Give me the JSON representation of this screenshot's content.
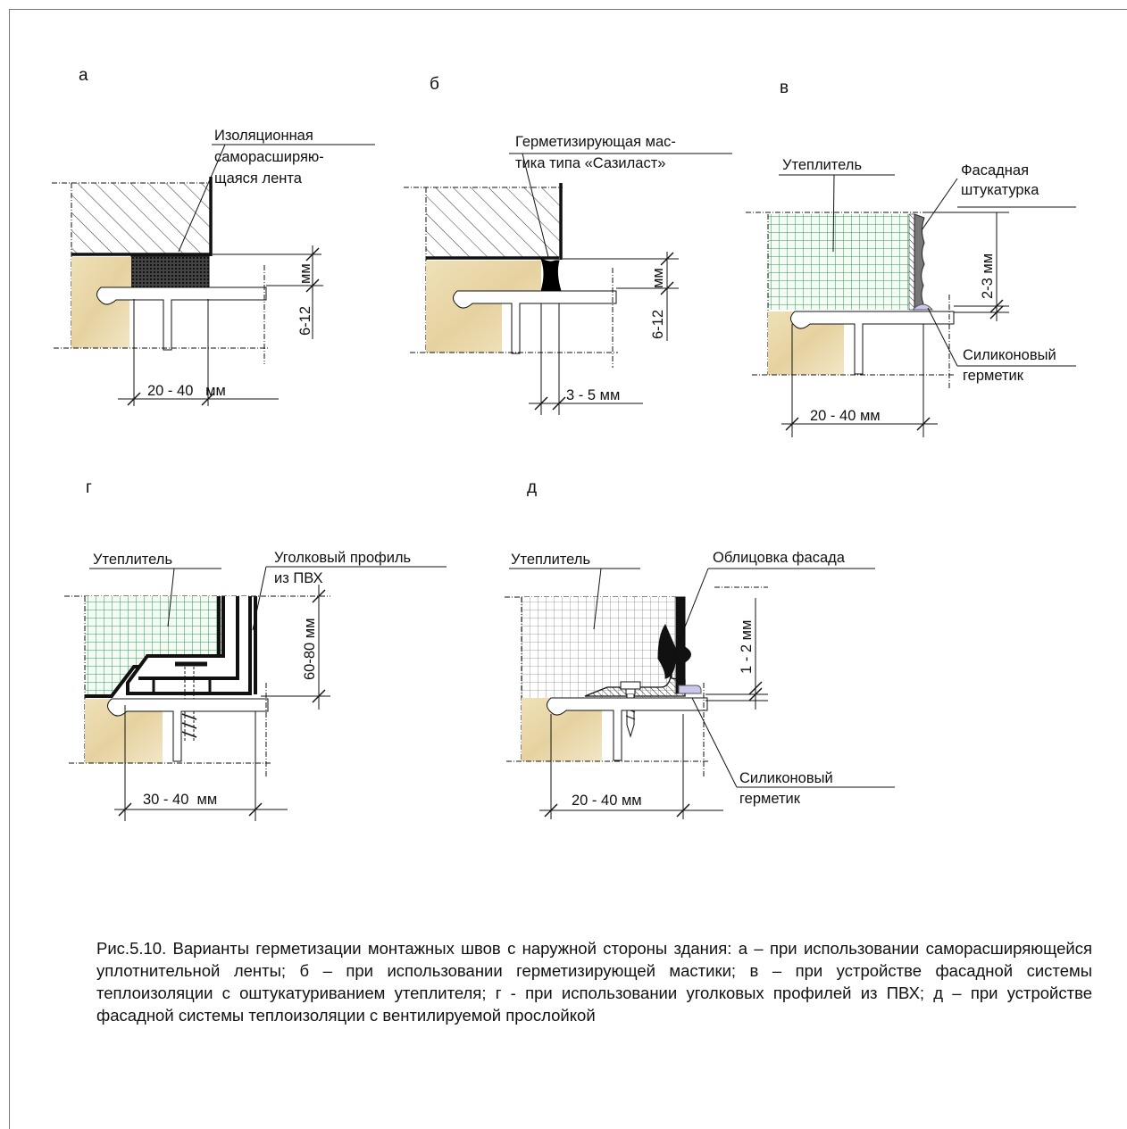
{
  "panels": {
    "a": {
      "letter": "а",
      "label": [
        "Изоляционная",
        "саморасширяю-",
        "щаяся лента"
      ],
      "dim_gap": "6-12",
      "dim_gap_unit": "мм",
      "dim_width": "20 - 40   мм"
    },
    "b": {
      "letter": "б",
      "label": [
        "Герметизирующая мас-",
        "тика типа «Сазиласт»"
      ],
      "dim_gap": "6-12",
      "dim_gap_unit": "мм",
      "dim_width": "3 - 5 мм"
    },
    "v": {
      "letter": "в",
      "insulation": "Утеплитель",
      "plaster": [
        "Фасадная",
        "штукатурка"
      ],
      "dim_gap": "2-3 мм",
      "sealant": [
        "Силиконовый",
        "герметик"
      ],
      "dim_width": "20 - 40 мм"
    },
    "g": {
      "letter": "г",
      "insulation": "Утеплитель",
      "profile": [
        "Уголковый профиль",
        "из ПВХ"
      ],
      "dim_gap": "60-80 мм",
      "dim_width": "30 - 40  мм"
    },
    "d": {
      "letter": "д",
      "insulation": "Утеплитель",
      "cladding": "Облицовка фасада",
      "dim_gap": "1 - 2 мм",
      "sealant": [
        "Силиконовый",
        "герметик"
      ],
      "dim_width": "20 - 40 мм"
    }
  },
  "caption": "Рис.5.10. Варианты герметизации монтажных швов с наружной стороны здания: а – при использовании саморасширяющейся уплотнительной ленты; б – при использовании герметизирующей мастики; в – при устройстве фасадной системы теплоизоляции с оштукатуриванием утеплителя; г - при использовании уголковых профилей из ПВХ; д – при устройстве фасадной системы теплоизоляции с вентилируемой прослойкой",
  "colors": {
    "wall": "#ecdcb4",
    "insulation": "#2e9a4e",
    "sealant": "#c9c8ec",
    "ink": "#111111"
  }
}
